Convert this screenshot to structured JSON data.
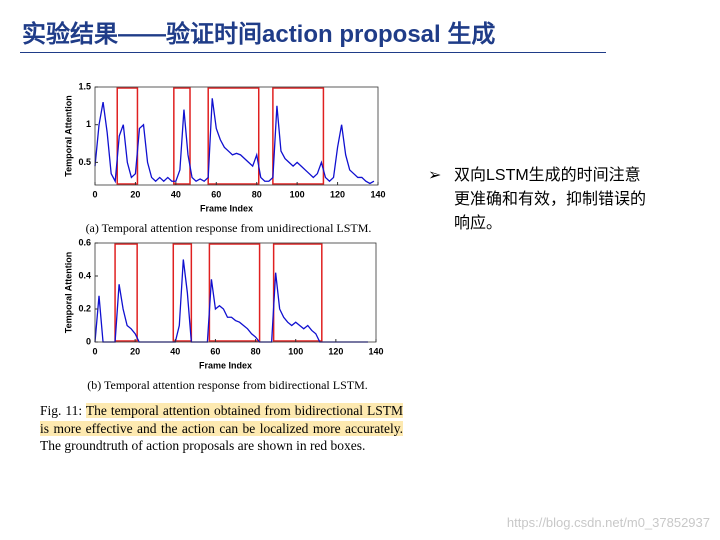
{
  "title": "实验结果——验证时间action proposal 生成",
  "bullet": "双向LSTM生成的时间注意更准确和有效，抑制错误的响应。",
  "caption": {
    "label": "Fig. 11:",
    "highlight": "The temporal attention obtained from bidirectional LSTM is more effective and the action can be localized more accurately.",
    "rest": "The groundtruth of action proposals are shown in red boxes."
  },
  "watermark": "https://blog.csdn.net/m0_37852937",
  "chart_data": [
    {
      "type": "line",
      "subcaption": "(a) Temporal attention response from unidirectional LSTM.",
      "xlabel": "Frame Index",
      "ylabel": "Temporal Attention",
      "xlim": [
        0,
        140
      ],
      "ylim": [
        0.2,
        1.5
      ],
      "xticks": [
        0,
        20,
        40,
        60,
        80,
        100,
        120,
        140
      ],
      "yticks": [
        0.5,
        1,
        1.5
      ],
      "boxes": [
        [
          11,
          21
        ],
        [
          39,
          47
        ],
        [
          56,
          81
        ],
        [
          88,
          113
        ]
      ],
      "box_color": "#e02020",
      "x": [
        0,
        2,
        4,
        6,
        8,
        10,
        12,
        14,
        16,
        18,
        20,
        22,
        24,
        26,
        28,
        30,
        32,
        34,
        36,
        38,
        40,
        42,
        44,
        46,
        48,
        50,
        52,
        54,
        56,
        58,
        60,
        62,
        64,
        66,
        68,
        70,
        72,
        74,
        76,
        78,
        80,
        82,
        84,
        86,
        88,
        90,
        92,
        94,
        96,
        98,
        100,
        102,
        104,
        106,
        108,
        110,
        112,
        114,
        116,
        118,
        120,
        122,
        124,
        126,
        128,
        130,
        132,
        134,
        136,
        138
      ],
      "series": [
        {
          "name": "unidirectional",
          "color": "#1010d0",
          "values": [
            0.45,
            1.0,
            1.3,
            0.9,
            0.35,
            0.25,
            0.85,
            1.0,
            0.5,
            0.3,
            0.35,
            0.95,
            1.0,
            0.5,
            0.3,
            0.25,
            0.3,
            0.25,
            0.3,
            0.25,
            0.25,
            0.4,
            1.2,
            0.6,
            0.3,
            0.25,
            0.28,
            0.25,
            0.3,
            1.35,
            0.95,
            0.8,
            0.7,
            0.65,
            0.6,
            0.62,
            0.6,
            0.55,
            0.5,
            0.45,
            0.6,
            0.3,
            0.25,
            0.25,
            0.3,
            1.25,
            0.65,
            0.55,
            0.5,
            0.45,
            0.5,
            0.45,
            0.4,
            0.35,
            0.3,
            0.35,
            0.5,
            0.3,
            0.25,
            0.3,
            0.7,
            1.0,
            0.6,
            0.4,
            0.35,
            0.3,
            0.3,
            0.25,
            0.22,
            0.25
          ]
        }
      ]
    },
    {
      "type": "line",
      "subcaption": "(b) Temporal attention response from bidirectional LSTM.",
      "xlabel": "Frame Index",
      "ylabel": "Temporal Attention",
      "xlim": [
        0,
        140
      ],
      "ylim": [
        0,
        0.6
      ],
      "xticks": [
        0,
        20,
        40,
        60,
        80,
        100,
        120,
        140
      ],
      "yticks": [
        0,
        0.2,
        0.4,
        0.6
      ],
      "boxes": [
        [
          10,
          21
        ],
        [
          39,
          48
        ],
        [
          57,
          82
        ],
        [
          89,
          113
        ]
      ],
      "box_color": "#e02020",
      "x": [
        0,
        2,
        4,
        6,
        8,
        10,
        12,
        14,
        16,
        18,
        20,
        22,
        24,
        26,
        28,
        30,
        32,
        34,
        36,
        38,
        40,
        42,
        44,
        46,
        48,
        50,
        52,
        54,
        56,
        58,
        60,
        62,
        64,
        66,
        68,
        70,
        72,
        74,
        76,
        78,
        80,
        82,
        84,
        86,
        88,
        90,
        92,
        94,
        96,
        98,
        100,
        102,
        104,
        106,
        108,
        110,
        112,
        114,
        116,
        118,
        120,
        122,
        124,
        126,
        128,
        130,
        132,
        134,
        136
      ],
      "series": [
        {
          "name": "bidirectional",
          "color": "#1010d0",
          "values": [
            0,
            0.28,
            0,
            0,
            0,
            0,
            0.35,
            0.2,
            0.1,
            0.08,
            0.05,
            0,
            0,
            0,
            0,
            0,
            0,
            0,
            0,
            0,
            0,
            0.1,
            0.5,
            0.3,
            0,
            0,
            0,
            0,
            0,
            0.38,
            0.2,
            0.22,
            0.2,
            0.15,
            0.15,
            0.13,
            0.12,
            0.1,
            0.08,
            0.05,
            0.03,
            0,
            0,
            0,
            0,
            0.42,
            0.2,
            0.15,
            0.12,
            0.1,
            0.12,
            0.1,
            0.08,
            0.1,
            0.07,
            0.05,
            0,
            0,
            0,
            0,
            0,
            0,
            0,
            0,
            0,
            0,
            0,
            0,
            0
          ]
        }
      ]
    }
  ]
}
